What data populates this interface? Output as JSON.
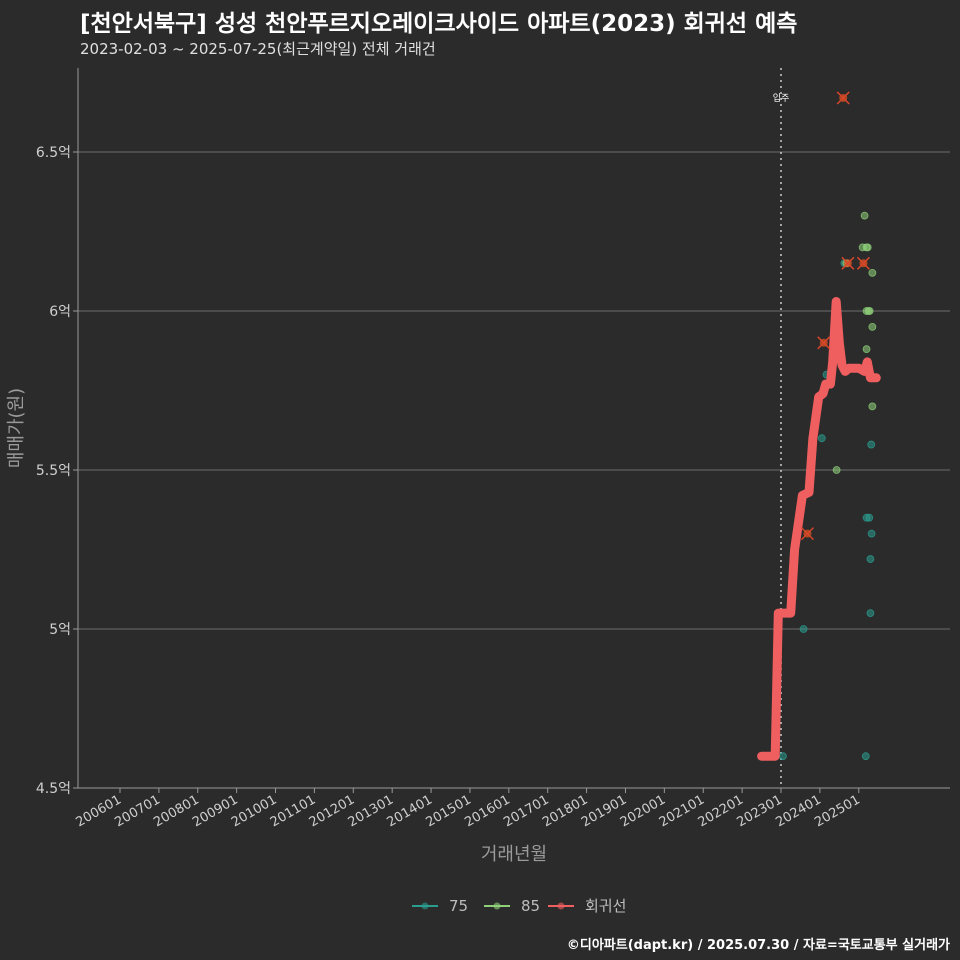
{
  "header": {
    "title": "[천안서북구] 성성 천안푸르지오레이크사이드 아파트(2023) 회귀선 예측",
    "subtitle": "2023-02-03 ~ 2025-07-25(최근계약일) 전체 거래건"
  },
  "footer": {
    "credit": "©디아파트(dapt.kr) / 2025.07.30 / 자료=국토교통부 실거래가"
  },
  "colors": {
    "background": "#2b2b2b",
    "grid": "#6e6e6e",
    "s75": "#2a9d8f",
    "s85": "#8fd17a",
    "regression": "#f05f5f",
    "outlier": "#e8561e"
  },
  "chart_data": {
    "type": "scatter",
    "title": "[천안서북구] 성성 천안푸르지오레이크사이드 아파트(2023) 회귀선 예측",
    "xlabel": "거래년월",
    "ylabel": "매매가(원)",
    "ylim": [
      4.5,
      6.7
    ],
    "xlim": [
      2005.2,
      2026.5
    ],
    "yticks": [
      {
        "value": 4.5,
        "label": "4.5억"
      },
      {
        "value": 5.0,
        "label": "5억"
      },
      {
        "value": 5.5,
        "label": "5.5억"
      },
      {
        "value": 6.0,
        "label": "6억"
      },
      {
        "value": 6.5,
        "label": "6.5억"
      }
    ],
    "xticks": [
      {
        "value": 2006,
        "label": "200601"
      },
      {
        "value": 2007,
        "label": "200701"
      },
      {
        "value": 2008,
        "label": "200801"
      },
      {
        "value": 2009,
        "label": "200901"
      },
      {
        "value": 2010,
        "label": "201001"
      },
      {
        "value": 2011,
        "label": "201101"
      },
      {
        "value": 2012,
        "label": "201201"
      },
      {
        "value": 2013,
        "label": "201301"
      },
      {
        "value": 2014,
        "label": "201401"
      },
      {
        "value": 2015,
        "label": "201501"
      },
      {
        "value": 2016,
        "label": "201601"
      },
      {
        "value": 2017,
        "label": "201701"
      },
      {
        "value": 2018,
        "label": "201801"
      },
      {
        "value": 2019,
        "label": "201901"
      },
      {
        "value": 2020,
        "label": "202001"
      },
      {
        "value": 2021,
        "label": "202101"
      },
      {
        "value": 2022,
        "label": "202201"
      },
      {
        "value": 2023,
        "label": "202301"
      },
      {
        "value": 2024,
        "label": "202401"
      },
      {
        "value": 2025,
        "label": "202501"
      }
    ],
    "vline": {
      "x": 2023.0,
      "label": "입주"
    },
    "series": [
      {
        "name": "75",
        "color": "#2a9d8f",
        "points": [
          {
            "x": 2023.05,
            "y": 4.6
          },
          {
            "x": 2023.58,
            "y": 5.0
          },
          {
            "x": 2024.05,
            "y": 5.6
          },
          {
            "x": 2024.17,
            "y": 5.8
          },
          {
            "x": 2025.2,
            "y": 5.35
          },
          {
            "x": 2025.27,
            "y": 5.35
          },
          {
            "x": 2025.3,
            "y": 5.22
          },
          {
            "x": 2025.3,
            "y": 5.05
          },
          {
            "x": 2025.32,
            "y": 5.58
          },
          {
            "x": 2025.33,
            "y": 5.3
          },
          {
            "x": 2025.18,
            "y": 4.6
          },
          {
            "x": 2024.63,
            "y": 6.15
          }
        ]
      },
      {
        "name": "85",
        "color": "#8fd17a",
        "points": [
          {
            "x": 2024.43,
            "y": 5.5
          },
          {
            "x": 2024.68,
            "y": 6.15
          },
          {
            "x": 2025.1,
            "y": 6.2
          },
          {
            "x": 2025.15,
            "y": 6.3
          },
          {
            "x": 2025.2,
            "y": 6.2
          },
          {
            "x": 2025.23,
            "y": 6.2
          },
          {
            "x": 2025.2,
            "y": 6.0
          },
          {
            "x": 2025.25,
            "y": 6.0
          },
          {
            "x": 2025.28,
            "y": 6.0
          },
          {
            "x": 2025.2,
            "y": 5.88
          },
          {
            "x": 2025.35,
            "y": 6.12
          },
          {
            "x": 2025.35,
            "y": 5.95
          },
          {
            "x": 2025.35,
            "y": 5.7
          }
        ]
      },
      {
        "name": "회귀선",
        "color": "#f05f5f",
        "points": [
          {
            "x": 2022.5,
            "y": 4.6
          },
          {
            "x": 2022.85,
            "y": 4.6
          },
          {
            "x": 2022.93,
            "y": 5.05
          },
          {
            "x": 2023.25,
            "y": 5.05
          },
          {
            "x": 2023.35,
            "y": 5.25
          },
          {
            "x": 2023.55,
            "y": 5.42
          },
          {
            "x": 2023.72,
            "y": 5.43
          },
          {
            "x": 2023.82,
            "y": 5.6
          },
          {
            "x": 2023.97,
            "y": 5.73
          },
          {
            "x": 2024.08,
            "y": 5.74
          },
          {
            "x": 2024.15,
            "y": 5.77
          },
          {
            "x": 2024.27,
            "y": 5.77
          },
          {
            "x": 2024.33,
            "y": 5.84
          },
          {
            "x": 2024.42,
            "y": 6.03
          },
          {
            "x": 2024.5,
            "y": 5.9
          },
          {
            "x": 2024.57,
            "y": 5.83
          },
          {
            "x": 2024.65,
            "y": 5.81
          },
          {
            "x": 2024.75,
            "y": 5.82
          },
          {
            "x": 2025.0,
            "y": 5.82
          },
          {
            "x": 2025.15,
            "y": 5.81
          },
          {
            "x": 2025.22,
            "y": 5.84
          },
          {
            "x": 2025.3,
            "y": 5.79
          },
          {
            "x": 2025.45,
            "y": 5.79
          }
        ]
      }
    ],
    "outliers": [
      {
        "x": 2024.6,
        "y": 6.67
      },
      {
        "x": 2024.72,
        "y": 6.15
      },
      {
        "x": 2025.12,
        "y": 6.15
      },
      {
        "x": 2024.1,
        "y": 5.9
      },
      {
        "x": 2023.68,
        "y": 5.3
      }
    ],
    "legend": {
      "position": "bottom",
      "entries": [
        "75",
        "85",
        "회귀선"
      ]
    }
  }
}
